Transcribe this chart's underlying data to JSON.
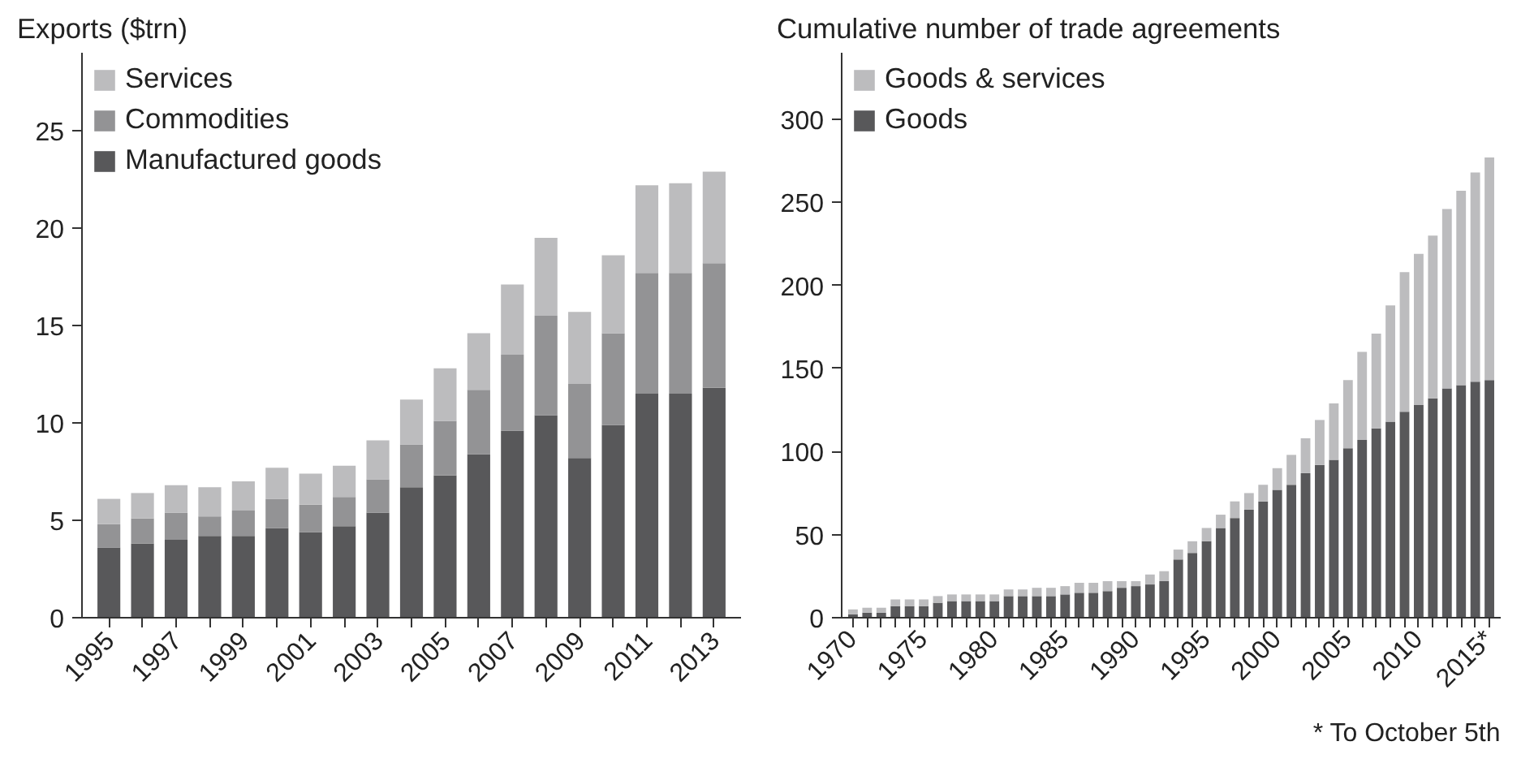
{
  "chart_data": [
    {
      "type": "bar",
      "stacked": true,
      "title": "Exports ($trn)",
      "categories": [
        "1995",
        null,
        "1997",
        null,
        "1999",
        null,
        "2001",
        null,
        "2003",
        null,
        "2005",
        null,
        "2007",
        null,
        "2009",
        null,
        "2011",
        null,
        "2013"
      ],
      "series": [
        {
          "name": "Manufactured goods",
          "color": "#58585a",
          "values": [
            3.6,
            3.8,
            4.0,
            4.2,
            4.2,
            4.6,
            4.4,
            4.7,
            5.4,
            6.7,
            7.3,
            8.4,
            9.6,
            10.4,
            8.2,
            9.9,
            11.5,
            11.5,
            11.8
          ]
        },
        {
          "name": "Commodities",
          "color": "#939395",
          "values": [
            1.2,
            1.3,
            1.4,
            1.0,
            1.3,
            1.5,
            1.4,
            1.5,
            1.7,
            2.2,
            2.8,
            3.3,
            3.9,
            5.1,
            3.8,
            4.7,
            6.2,
            6.2,
            6.4
          ]
        },
        {
          "name": "Services",
          "color": "#bcbcbe",
          "values": [
            1.3,
            1.3,
            1.4,
            1.5,
            1.5,
            1.6,
            1.6,
            1.6,
            2.0,
            2.3,
            2.7,
            2.9,
            3.6,
            4.0,
            3.7,
            4.0,
            4.5,
            4.6,
            4.7
          ]
        }
      ],
      "ylim": [
        0,
        29
      ],
      "yticks": [
        0,
        5,
        10,
        15,
        20,
        25
      ],
      "grid": false,
      "legend": "top left"
    },
    {
      "type": "bar",
      "stacked": true,
      "title": "Cumulative number of trade agreements",
      "categories": [
        "1970",
        null,
        null,
        null,
        null,
        "1975",
        null,
        null,
        null,
        null,
        "1980",
        null,
        null,
        null,
        null,
        "1985",
        null,
        null,
        null,
        null,
        "1990",
        null,
        null,
        null,
        null,
        "1995",
        null,
        null,
        null,
        null,
        "2000",
        null,
        null,
        null,
        null,
        "2005",
        null,
        null,
        null,
        null,
        "2010",
        null,
        null,
        null,
        null,
        "2015*"
      ],
      "series": [
        {
          "name": "Goods",
          "color": "#58585a",
          "values": [
            2,
            3,
            3,
            7,
            7,
            7,
            9,
            10,
            10,
            10,
            10,
            13,
            13,
            13,
            13,
            14,
            15,
            15,
            16,
            18,
            19,
            20,
            22,
            35,
            39,
            46,
            54,
            60,
            65,
            70,
            77,
            80,
            87,
            92,
            95,
            102,
            107,
            114,
            118,
            124,
            128,
            132,
            138,
            140,
            142,
            143
          ]
        },
        {
          "name": "Goods & services",
          "color": "#bcbcbe",
          "values": [
            3,
            3,
            3,
            4,
            4,
            4,
            4,
            4,
            4,
            4,
            4,
            4,
            4,
            5,
            5,
            5,
            6,
            6,
            6,
            4,
            3,
            6,
            6,
            6,
            7,
            8,
            8,
            10,
            10,
            10,
            13,
            18,
            21,
            27,
            34,
            41,
            53,
            57,
            70,
            84,
            91,
            98,
            108,
            117,
            126,
            134
          ]
        }
      ],
      "ylim": [
        0,
        340
      ],
      "yticks": [
        0,
        50,
        100,
        150,
        200,
        250,
        300
      ],
      "grid": false,
      "legend": "top left",
      "annotations": [
        "* To October 5th"
      ]
    }
  ]
}
